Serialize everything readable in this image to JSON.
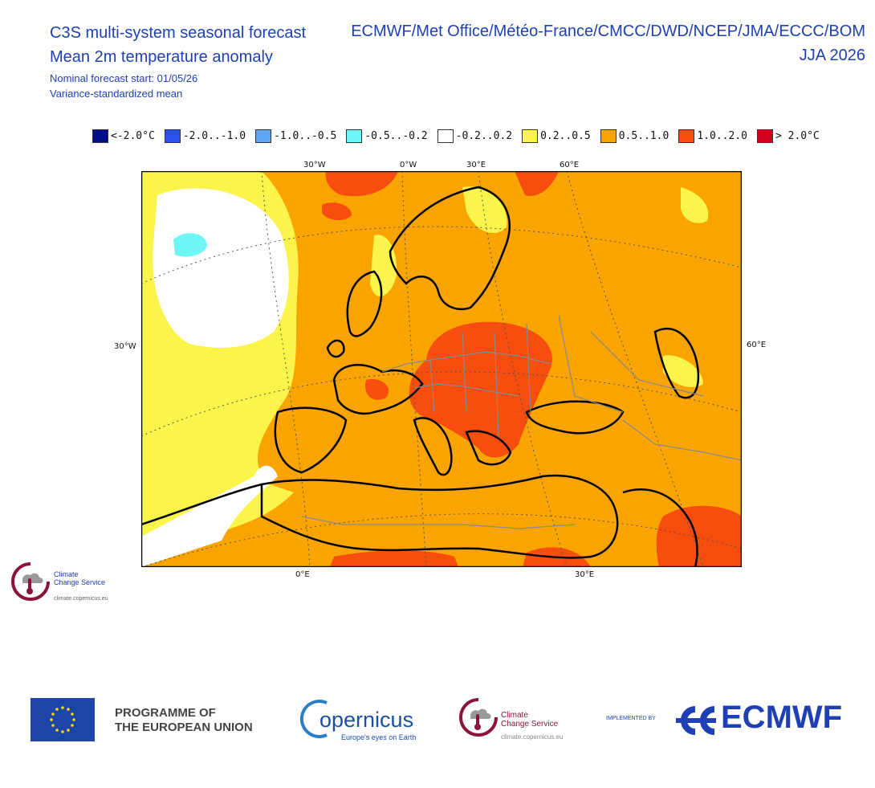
{
  "header": {
    "title_line1": "C3S multi-system seasonal forecast",
    "title_line2": "Mean 2m temperature anomaly",
    "start": "Nominal forecast start: 01/05/26",
    "method": "Variance-standardized mean",
    "centres": "ECMWF/Met Office/Météo-France/CMCC/DWD/NCEP/JMA/ECCC/BOM",
    "period": "JJA 2026"
  },
  "legend": [
    {
      "label": "<-2.0°C",
      "color": "#000f87"
    },
    {
      "label": "-2.0..-1.0",
      "color": "#2a51f0"
    },
    {
      "label": "-1.0..-0.5",
      "color": "#5da6f5"
    },
    {
      "label": "-0.5..-0.2",
      "color": "#6ef6f7"
    },
    {
      "label": "-0.2..0.2",
      "color": "#ffffff"
    },
    {
      "label": "0.2..0.5",
      "color": "#fbf44a"
    },
    {
      "label": "0.5..1.0",
      "color": "#f9a400"
    },
    {
      "label": "1.0..2.0",
      "color": "#f74d0f"
    },
    {
      "label": "> 2.0°C",
      "color": "#d2001d"
    }
  ],
  "map": {
    "top_lon_labels": [
      "30°W",
      "0°W",
      "30°E",
      "60°E"
    ],
    "bottom_lon_labels": [
      "0°E",
      "30°E"
    ],
    "left_lat_label": "30°W",
    "right_lat_label": "60°E"
  },
  "branding": {
    "c3s_small_line1": "Climate",
    "c3s_small_line2": "Change Service",
    "c3s_small_url": "climate.copernicus.eu",
    "eu_line1": "PROGRAMME OF",
    "eu_line2": "THE EUROPEAN UNION",
    "copernicus_name": "opernicus",
    "copernicus_tag": "Europe's eyes on Earth",
    "c3s_line1": "Climate",
    "c3s_line2": "Change Service",
    "c3s_url": "climate.copernicus.eu",
    "implemented_by": "IMPLEMENTED BY",
    "ecmwf": "ECMWF"
  }
}
